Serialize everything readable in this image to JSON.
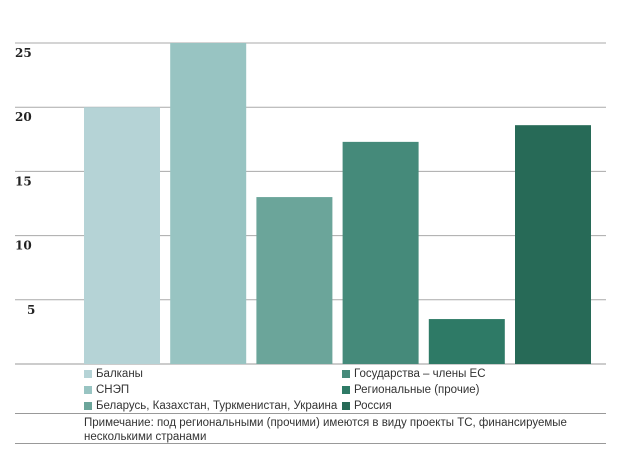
{
  "chart_data": {
    "type": "bar",
    "categories": [
      "Балканы",
      "СНЭП",
      "Беларусь, Казахстан, Туркменистан, Украина",
      "Государства – члены ЕС",
      "Региональные (прочие)",
      "Россия"
    ],
    "values": [
      20,
      25,
      13,
      17.3,
      3.5,
      18.6
    ],
    "colors": [
      "#b5d3d6",
      "#98c4c2",
      "#6ba59a",
      "#458a7a",
      "#2e7a66",
      "#276a57"
    ],
    "yticks": [
      5,
      10,
      15,
      20,
      25
    ],
    "ylim": [
      0,
      25
    ],
    "grid": true,
    "title": "",
    "xlabel": "",
    "ylabel": "",
    "legend_placement": "bottom",
    "note": "Примечание: под региональными (прочими) имеются в виду проекты ТС, финансируемые несколькими странами"
  }
}
